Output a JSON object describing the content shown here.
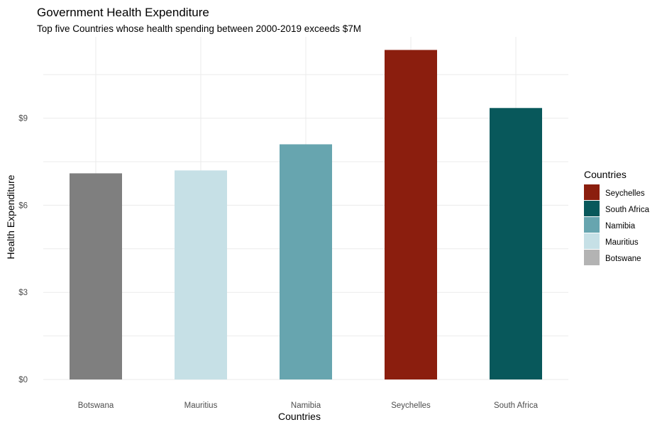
{
  "chart_data": {
    "type": "bar",
    "title": "Government Health Expenditure",
    "subtitle": "Top five Countries whose health spending between 2000-2019 exceeds $7M",
    "xlabel": "Countries",
    "ylabel": "Health Expenditure",
    "categories": [
      "Botswana",
      "Mauritius",
      "Namibia",
      "Seychelles",
      "South Africa"
    ],
    "values": [
      7.1,
      7.2,
      8.1,
      11.35,
      9.35
    ],
    "colors": [
      "#7f7f7f",
      "#c6e0e6",
      "#67a5af",
      "#8b1e0e",
      "#08585b"
    ],
    "ylim": [
      0,
      11.8
    ],
    "yticks": [
      0,
      3,
      6,
      9
    ],
    "ytick_labels": [
      "$0",
      "$3",
      "$6",
      "$9"
    ],
    "grid": true,
    "legend": {
      "title": "Countries",
      "position": "right",
      "entries": [
        {
          "label": "Seychelles",
          "color": "#8b1e0e"
        },
        {
          "label": "South Africa",
          "color": "#08585b"
        },
        {
          "label": "Namibia",
          "color": "#67a5af"
        },
        {
          "label": "Mauritius",
          "color": "#c6e0e6"
        },
        {
          "label": "Botswane",
          "color": "#b3b3b3"
        }
      ]
    }
  }
}
